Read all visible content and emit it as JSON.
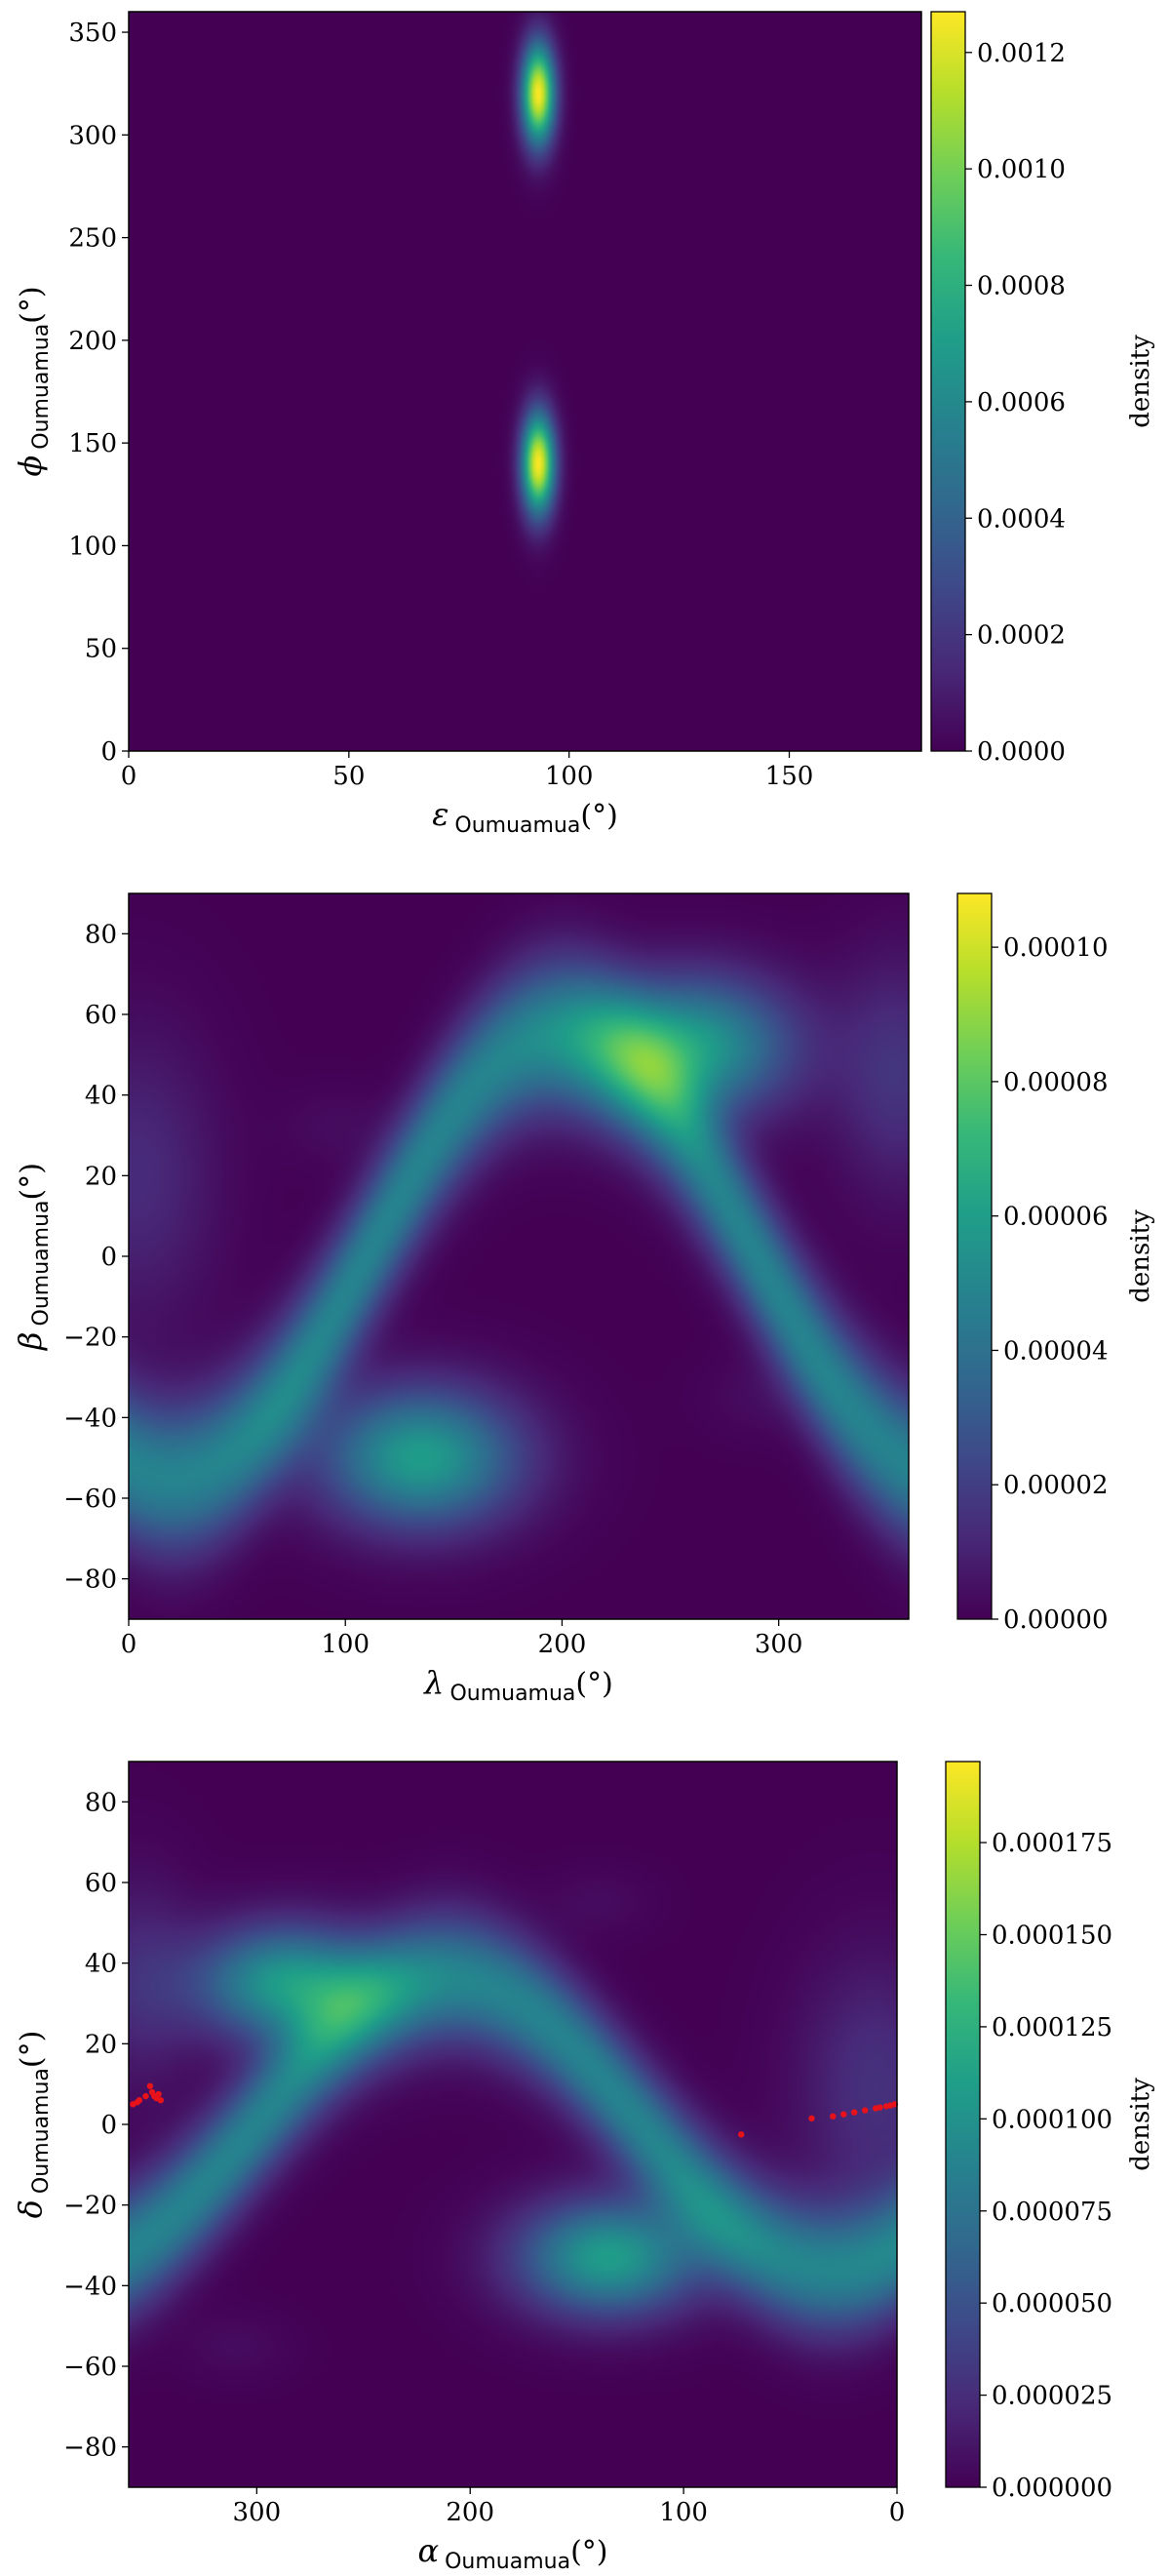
{
  "colors": {
    "viridis": [
      "#440154",
      "#482878",
      "#3e4989",
      "#31688e",
      "#26828e",
      "#1f9e89",
      "#35b779",
      "#6ece58",
      "#b5de2b",
      "#fde725"
    ],
    "points": "#e8131a"
  },
  "colorbar_label": "density",
  "chart_data": [
    {
      "type": "heatmap",
      "title": "",
      "xlabel": {
        "symbol": "ε",
        "sub": "Oumuamua",
        "unit": "(°)"
      },
      "ylabel": {
        "symbol": "ϕ",
        "sub": "Oumuamua",
        "unit": "(°)"
      },
      "xlim": [
        0,
        180
      ],
      "ylim": [
        0,
        360
      ],
      "x_reversed": false,
      "xticks": [
        0,
        50,
        100,
        150
      ],
      "yticks": [
        0,
        50,
        100,
        150,
        200,
        250,
        300,
        350
      ],
      "background_level": 0.0,
      "blobs": [
        {
          "x": 93,
          "y": 140,
          "sx": 2.6,
          "sy": 17,
          "amp": 1.0
        },
        {
          "x": 93,
          "y": 320,
          "sx": 2.6,
          "sy": 17,
          "amp": 1.0
        }
      ],
      "band": null,
      "points": [],
      "colorbar": {
        "max": 0.00127,
        "ticks": [
          0.0,
          0.0002,
          0.0004,
          0.0006,
          0.0008,
          0.001,
          0.0012
        ],
        "tick_labels": [
          "0.0000",
          "0.0002",
          "0.0004",
          "0.0006",
          "0.0008",
          "0.0010",
          "0.0012"
        ]
      }
    },
    {
      "type": "heatmap",
      "title": "",
      "xlabel": {
        "symbol": "λ",
        "sub": "Oumuamua",
        "unit": "(°)"
      },
      "ylabel": {
        "symbol": "β",
        "sub": "Oumuamua",
        "unit": "(°)"
      },
      "xlim": [
        0,
        360
      ],
      "ylim": [
        -90,
        90
      ],
      "x_reversed": false,
      "xticks": [
        0,
        100,
        200,
        300
      ],
      "yticks": [
        -80,
        -60,
        -40,
        -20,
        0,
        20,
        40,
        60,
        80
      ],
      "background_level": 0.0,
      "band": {
        "curve": "sine",
        "amplitude": 55,
        "center_x": 200,
        "sigma": 13,
        "amp": 0.45,
        "peak_x": 0,
        "peak_y": 0,
        "bumps": [
          {
            "x": 135,
            "y": -50,
            "sx": 32,
            "sy": 12,
            "amp": 0.55
          },
          {
            "x": 260,
            "y": 52,
            "sx": 32,
            "sy": 12,
            "amp": 0.55
          },
          {
            "x": 5,
            "y": 20,
            "sx": 25,
            "sy": 25,
            "amp": 0.12
          },
          {
            "x": 355,
            "y": 45,
            "sx": 20,
            "sy": 20,
            "amp": 0.15
          }
        ]
      },
      "blobs": [
        {
          "x": 95,
          "y": 32,
          "sx": 18,
          "sy": 7,
          "amp": 0.03
        },
        {
          "x": 290,
          "y": -35,
          "sx": 18,
          "sy": 7,
          "amp": 0.03
        }
      ],
      "points": [],
      "colorbar": {
        "max": 0.000108,
        "ticks": [
          0.0,
          2e-05,
          4e-05,
          6e-05,
          8e-05,
          0.0001
        ],
        "tick_labels": [
          "0.00000",
          "0.00002",
          "0.00004",
          "0.00006",
          "0.00008",
          "0.00010"
        ]
      }
    },
    {
      "type": "heatmap",
      "title": "",
      "xlabel": {
        "symbol": "α",
        "sub": "Oumuamua",
        "unit": "(°)"
      },
      "ylabel": {
        "symbol": "δ",
        "sub": "Oumuamua",
        "unit": "(°)"
      },
      "xlim": [
        360,
        0
      ],
      "ylim": [
        -90,
        90
      ],
      "x_reversed": true,
      "xticks": [
        300,
        200,
        100,
        0
      ],
      "yticks": [
        -80,
        -60,
        -40,
        -20,
        0,
        20,
        40,
        60,
        80
      ],
      "background_level": 0.0,
      "band": {
        "curve": "sine",
        "amplitude": 36,
        "center_x": 210,
        "sigma": 11,
        "amp": 0.45,
        "bumps": [
          {
            "x": 285,
            "y": 35,
            "sx": 30,
            "sy": 10,
            "amp": 0.55
          },
          {
            "x": 135,
            "y": -33,
            "sx": 30,
            "sy": 10,
            "amp": 0.55
          },
          {
            "x": 10,
            "y": 10,
            "sx": 25,
            "sy": 22,
            "amp": 0.14
          },
          {
            "x": 355,
            "y": 35,
            "sx": 18,
            "sy": 18,
            "amp": 0.12
          }
        ]
      },
      "blobs": [
        {
          "x": 140,
          "y": 55,
          "sx": 18,
          "sy": 6,
          "amp": 0.03
        },
        {
          "x": 310,
          "y": -55,
          "sx": 18,
          "sy": 6,
          "amp": 0.03
        }
      ],
      "points": [
        {
          "x": 358,
          "y": 5
        },
        {
          "x": 356,
          "y": 5.5
        },
        {
          "x": 355,
          "y": 6
        },
        {
          "x": 352,
          "y": 7
        },
        {
          "x": 350,
          "y": 9.5
        },
        {
          "x": 349,
          "y": 8
        },
        {
          "x": 348,
          "y": 7
        },
        {
          "x": 347,
          "y": 6.5
        },
        {
          "x": 346,
          "y": 7.5
        },
        {
          "x": 345,
          "y": 6
        },
        {
          "x": 73,
          "y": -2.5
        },
        {
          "x": 40,
          "y": 1.5
        },
        {
          "x": 30,
          "y": 2
        },
        {
          "x": 25,
          "y": 2.5
        },
        {
          "x": 20,
          "y": 3
        },
        {
          "x": 15,
          "y": 3.5
        },
        {
          "x": 10,
          "y": 4
        },
        {
          "x": 8,
          "y": 4.2
        },
        {
          "x": 5,
          "y": 4.5
        },
        {
          "x": 3,
          "y": 4.7
        },
        {
          "x": 1,
          "y": 5
        }
      ],
      "colorbar": {
        "max": 0.000197,
        "ticks": [
          0.0,
          2.5e-05,
          5e-05,
          7.5e-05,
          0.0001,
          0.000125,
          0.00015,
          0.000175
        ],
        "tick_labels": [
          "0.000000",
          "0.000025",
          "0.000050",
          "0.000075",
          "0.000100",
          "0.000125",
          "0.000150",
          "0.000175"
        ]
      }
    }
  ]
}
